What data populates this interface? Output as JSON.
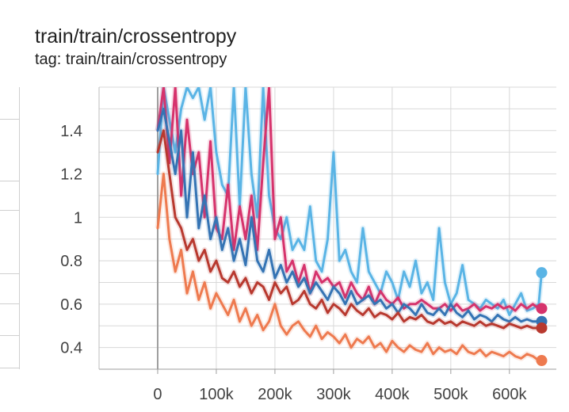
{
  "header": {
    "title": "train/train/crossentropy",
    "tag": "tag: train/train/crossentropy"
  },
  "chart_data": {
    "type": "line",
    "title": "train/train/crossentropy",
    "xlabel": "",
    "ylabel": "",
    "xlim": [
      -100000,
      680000
    ],
    "ylim": [
      0.3,
      1.6
    ],
    "x_ticks": [
      0,
      100000,
      200000,
      300000,
      400000,
      500000,
      600000
    ],
    "x_tick_labels": [
      "0",
      "100k",
      "200k",
      "300k",
      "400k",
      "500k",
      "600k"
    ],
    "y_ticks": [
      0.4,
      0.6,
      0.8,
      1.0,
      1.2,
      1.4
    ],
    "y_tick_labels": [
      "0.4",
      "0.6",
      "0.8",
      "1",
      "1.2",
      "1.4"
    ],
    "grid": true,
    "series": [
      {
        "color": "#5ab4e5",
        "x": [
          0,
          10000,
          20000,
          30000,
          40000,
          50000,
          60000,
          70000,
          80000,
          90000,
          100000,
          110000,
          120000,
          130000,
          140000,
          150000,
          160000,
          170000,
          180000,
          190000,
          200000,
          210000,
          220000,
          230000,
          240000,
          250000,
          260000,
          270000,
          280000,
          290000,
          300000,
          310000,
          320000,
          330000,
          340000,
          350000,
          360000,
          370000,
          380000,
          390000,
          400000,
          410000,
          420000,
          430000,
          440000,
          450000,
          460000,
          470000,
          480000,
          490000,
          500000,
          510000,
          520000,
          530000,
          540000,
          550000,
          560000,
          570000,
          580000,
          590000,
          600000,
          610000,
          620000,
          630000,
          640000,
          650000,
          655000
        ],
        "y": [
          1.2,
          1.6,
          1.45,
          1.3,
          1.5,
          1.6,
          1.55,
          1.6,
          1.45,
          1.6,
          1.3,
          1.15,
          1.1,
          1.6,
          1.05,
          1.6,
          1.2,
          1.0,
          1.6,
          1.1,
          0.95,
          0.9,
          1.0,
          0.85,
          0.9,
          0.85,
          1.05,
          0.8,
          0.75,
          0.9,
          1.3,
          0.8,
          0.85,
          0.75,
          0.7,
          0.95,
          0.75,
          0.7,
          0.65,
          0.75,
          0.7,
          0.62,
          0.75,
          0.68,
          0.8,
          0.65,
          0.7,
          0.62,
          0.95,
          0.7,
          0.6,
          0.65,
          0.78,
          0.62,
          0.6,
          0.58,
          0.62,
          0.6,
          0.58,
          0.62,
          0.55,
          0.6,
          0.65,
          0.57,
          0.58,
          0.6,
          0.745
        ]
      },
      {
        "color": "#d6336c",
        "x": [
          0,
          10000,
          20000,
          30000,
          40000,
          50000,
          60000,
          70000,
          80000,
          90000,
          100000,
          110000,
          120000,
          130000,
          140000,
          150000,
          160000,
          170000,
          180000,
          190000,
          200000,
          210000,
          220000,
          230000,
          240000,
          250000,
          260000,
          270000,
          280000,
          290000,
          300000,
          310000,
          320000,
          330000,
          340000,
          350000,
          360000,
          370000,
          380000,
          390000,
          400000,
          410000,
          420000,
          430000,
          440000,
          450000,
          460000,
          470000,
          480000,
          490000,
          500000,
          510000,
          520000,
          530000,
          540000,
          550000,
          560000,
          570000,
          580000,
          590000,
          600000,
          610000,
          620000,
          630000,
          640000,
          650000,
          655000
        ],
        "y": [
          1.4,
          1.6,
          1.25,
          1.6,
          1.1,
          1.45,
          1.2,
          1.3,
          1.0,
          1.35,
          0.95,
          0.9,
          1.15,
          0.85,
          1.05,
          0.9,
          1.1,
          0.85,
          1.25,
          1.6,
          0.9,
          1.0,
          0.75,
          0.8,
          0.7,
          0.78,
          0.65,
          0.75,
          0.7,
          0.72,
          0.68,
          0.7,
          0.63,
          0.7,
          0.65,
          0.62,
          0.68,
          0.6,
          0.66,
          0.62,
          0.6,
          0.63,
          0.58,
          0.6,
          0.6,
          0.62,
          0.6,
          0.58,
          0.58,
          0.6,
          0.57,
          0.6,
          0.57,
          0.58,
          0.6,
          0.57,
          0.59,
          0.58,
          0.6,
          0.58,
          0.59,
          0.57,
          0.6,
          0.58,
          0.6,
          0.58,
          0.58
        ]
      },
      {
        "color": "#3574b4",
        "x": [
          0,
          10000,
          20000,
          30000,
          40000,
          50000,
          60000,
          70000,
          80000,
          90000,
          100000,
          110000,
          120000,
          130000,
          140000,
          150000,
          160000,
          170000,
          180000,
          190000,
          200000,
          210000,
          220000,
          230000,
          240000,
          250000,
          260000,
          270000,
          280000,
          290000,
          300000,
          310000,
          320000,
          330000,
          340000,
          350000,
          360000,
          370000,
          380000,
          390000,
          400000,
          410000,
          420000,
          430000,
          440000,
          450000,
          460000,
          470000,
          480000,
          490000,
          500000,
          510000,
          520000,
          530000,
          540000,
          550000,
          560000,
          570000,
          580000,
          590000,
          600000,
          610000,
          620000,
          630000,
          640000,
          650000,
          655000
        ],
        "y": [
          1.4,
          1.5,
          1.35,
          1.2,
          1.4,
          1.0,
          1.3,
          0.95,
          1.1,
          0.9,
          1.0,
          0.85,
          0.95,
          0.8,
          0.9,
          0.78,
          1.0,
          0.8,
          0.75,
          0.85,
          0.72,
          0.78,
          0.7,
          0.75,
          0.68,
          0.72,
          0.65,
          0.7,
          0.66,
          0.62,
          0.68,
          0.65,
          0.6,
          0.66,
          0.6,
          0.62,
          0.64,
          0.6,
          0.62,
          0.58,
          0.6,
          0.56,
          0.6,
          0.58,
          0.55,
          0.6,
          0.56,
          0.55,
          0.58,
          0.55,
          0.6,
          0.56,
          0.54,
          0.57,
          0.53,
          0.55,
          0.54,
          0.52,
          0.55,
          0.53,
          0.52,
          0.54,
          0.52,
          0.53,
          0.52,
          0.52,
          0.52
        ]
      },
      {
        "color": "#b8392f",
        "x": [
          0,
          10000,
          20000,
          30000,
          40000,
          50000,
          60000,
          70000,
          80000,
          90000,
          100000,
          110000,
          120000,
          130000,
          140000,
          150000,
          160000,
          170000,
          180000,
          190000,
          200000,
          210000,
          220000,
          230000,
          240000,
          250000,
          260000,
          270000,
          280000,
          290000,
          300000,
          310000,
          320000,
          330000,
          340000,
          350000,
          360000,
          370000,
          380000,
          390000,
          400000,
          410000,
          420000,
          430000,
          440000,
          450000,
          460000,
          470000,
          480000,
          490000,
          500000,
          510000,
          520000,
          530000,
          540000,
          550000,
          560000,
          570000,
          580000,
          590000,
          600000,
          610000,
          620000,
          630000,
          640000,
          650000,
          655000
        ],
        "y": [
          1.3,
          1.4,
          1.2,
          1.0,
          0.95,
          0.85,
          0.9,
          0.8,
          0.85,
          0.75,
          0.8,
          0.72,
          0.7,
          0.75,
          0.68,
          0.72,
          0.65,
          0.7,
          0.68,
          0.62,
          0.7,
          0.65,
          0.68,
          0.6,
          0.62,
          0.66,
          0.6,
          0.58,
          0.62,
          0.56,
          0.6,
          0.58,
          0.55,
          0.6,
          0.57,
          0.55,
          0.58,
          0.54,
          0.56,
          0.55,
          0.53,
          0.56,
          0.52,
          0.54,
          0.53,
          0.55,
          0.52,
          0.51,
          0.53,
          0.51,
          0.52,
          0.5,
          0.52,
          0.51,
          0.5,
          0.52,
          0.5,
          0.51,
          0.5,
          0.49,
          0.51,
          0.5,
          0.49,
          0.5,
          0.49,
          0.49,
          0.49
        ]
      },
      {
        "color": "#ee7a4f",
        "x": [
          0,
          10000,
          20000,
          30000,
          40000,
          50000,
          60000,
          70000,
          80000,
          90000,
          100000,
          110000,
          120000,
          130000,
          140000,
          150000,
          160000,
          170000,
          180000,
          190000,
          200000,
          210000,
          220000,
          230000,
          240000,
          250000,
          260000,
          270000,
          280000,
          290000,
          300000,
          310000,
          320000,
          330000,
          340000,
          350000,
          360000,
          370000,
          380000,
          390000,
          400000,
          410000,
          420000,
          430000,
          440000,
          450000,
          460000,
          470000,
          480000,
          490000,
          500000,
          510000,
          520000,
          530000,
          540000,
          550000,
          560000,
          570000,
          580000,
          590000,
          600000,
          610000,
          620000,
          630000,
          640000,
          650000,
          655000
        ],
        "y": [
          0.95,
          1.2,
          0.9,
          0.75,
          0.85,
          0.65,
          0.75,
          0.62,
          0.7,
          0.58,
          0.65,
          0.6,
          0.55,
          0.62,
          0.52,
          0.58,
          0.5,
          0.55,
          0.48,
          0.52,
          0.6,
          0.5,
          0.46,
          0.5,
          0.52,
          0.48,
          0.45,
          0.5,
          0.44,
          0.47,
          0.45,
          0.42,
          0.46,
          0.4,
          0.44,
          0.42,
          0.45,
          0.4,
          0.42,
          0.38,
          0.43,
          0.4,
          0.38,
          0.41,
          0.39,
          0.38,
          0.42,
          0.37,
          0.4,
          0.38,
          0.39,
          0.37,
          0.41,
          0.38,
          0.37,
          0.39,
          0.36,
          0.38,
          0.37,
          0.36,
          0.38,
          0.36,
          0.35,
          0.37,
          0.36,
          0.34,
          0.34
        ]
      }
    ]
  }
}
